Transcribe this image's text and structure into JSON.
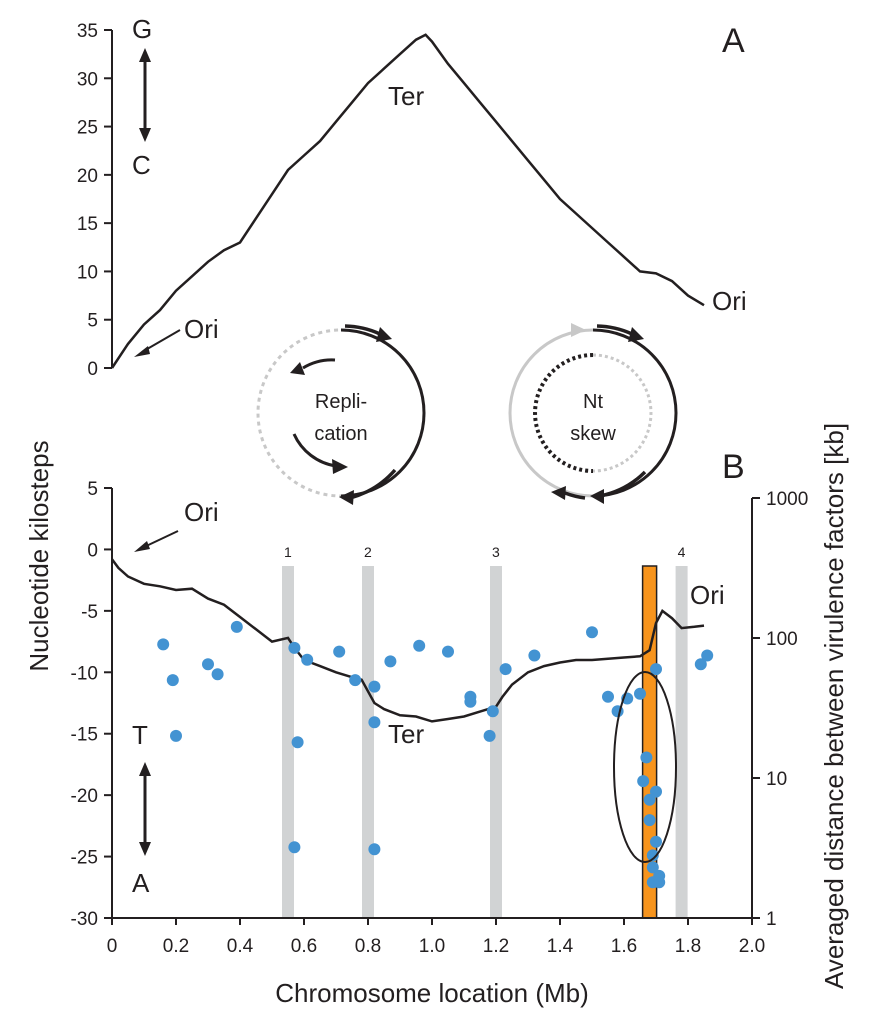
{
  "chart_data": [
    {
      "panel": "A",
      "type": "line",
      "panel_label": "A",
      "xlabel": "",
      "ylabel": "Nucleotide kilosteps",
      "xlim": [
        0,
        2.0
      ],
      "ylim": [
        0,
        35
      ],
      "yticks": [
        "0",
        "5",
        "10",
        "15",
        "20",
        "25",
        "30",
        "35"
      ],
      "direction_top": "G",
      "direction_bottom": "C",
      "annotations": {
        "ori_left": "Ori",
        "ter": "Ter",
        "ori_right": "Ori"
      },
      "series": [
        {
          "x": [
            0,
            0.05,
            0.1,
            0.15,
            0.2,
            0.25,
            0.3,
            0.35,
            0.4,
            0.45,
            0.5,
            0.55,
            0.6,
            0.65,
            0.7,
            0.75,
            0.8,
            0.85,
            0.9,
            0.95,
            0.98,
            1.0,
            1.05,
            1.1,
            1.15,
            1.2,
            1.25,
            1.3,
            1.35,
            1.4,
            1.45,
            1.5,
            1.55,
            1.6,
            1.65,
            1.7,
            1.75,
            1.8,
            1.85
          ],
          "values": [
            0,
            2.5,
            4.5,
            6.0,
            8.0,
            9.5,
            11.0,
            12.2,
            13.0,
            15.5,
            18.0,
            20.5,
            22.0,
            23.5,
            25.5,
            27.5,
            29.5,
            31.0,
            32.5,
            34.0,
            34.5,
            33.8,
            31.5,
            29.5,
            27.5,
            25.5,
            23.5,
            21.5,
            19.5,
            17.5,
            16.0,
            14.5,
            13.0,
            11.5,
            10.0,
            9.8,
            9.0,
            7.5,
            6.5
          ]
        }
      ]
    },
    {
      "panel": "B",
      "type": "line",
      "panel_label": "B",
      "xlabel": "Chromosome location (Mb)",
      "ylabel_right": "Averaged distance between virulence factors [kb]",
      "xlim": [
        0,
        2.0
      ],
      "xticks": [
        "0",
        "0.2",
        "0.4",
        "0.6",
        "0.8",
        "1.0",
        "1.2",
        "1.4",
        "1.6",
        "1.8",
        "2.0"
      ],
      "ylim": [
        -30,
        5
      ],
      "yticks": [
        "5",
        "0",
        "-5",
        "-10",
        "-15",
        "-20",
        "-25",
        "-30"
      ],
      "y2_scale": "log",
      "y2lim": [
        1,
        1000
      ],
      "y2ticks": [
        "1",
        "10",
        "100",
        "1000"
      ],
      "direction_top": "T",
      "direction_bottom": "A",
      "annotations": {
        "ori_left": "Ori",
        "ter": "Ter",
        "ori_right": "Ori"
      },
      "bands": [
        {
          "label": "1",
          "x": 0.55
        },
        {
          "label": "2",
          "x": 0.8
        },
        {
          "label": "3",
          "x": 1.2
        },
        {
          "label": "4",
          "x": 1.78
        }
      ],
      "highlight_x": 1.68,
      "highlight_color": "#f7941d",
      "series": [
        {
          "x": [
            0,
            0.02,
            0.05,
            0.1,
            0.15,
            0.2,
            0.25,
            0.3,
            0.35,
            0.4,
            0.45,
            0.5,
            0.55,
            0.57,
            0.6,
            0.65,
            0.7,
            0.75,
            0.78,
            0.82,
            0.85,
            0.9,
            0.95,
            1.0,
            1.05,
            1.1,
            1.15,
            1.2,
            1.22,
            1.25,
            1.3,
            1.35,
            1.4,
            1.45,
            1.5,
            1.55,
            1.6,
            1.65,
            1.68,
            1.7,
            1.72,
            1.75,
            1.78,
            1.82,
            1.85
          ],
          "values": [
            -0.8,
            -1.5,
            -2.2,
            -2.8,
            -3.0,
            -3.3,
            -3.2,
            -4.0,
            -4.5,
            -5.5,
            -6.5,
            -7.5,
            -7.2,
            -8.0,
            -9.0,
            -9.5,
            -10.0,
            -10.4,
            -10.6,
            -12.5,
            -13.0,
            -13.5,
            -13.6,
            -14.0,
            -13.8,
            -13.6,
            -13.2,
            -12.8,
            -12.0,
            -11.0,
            -10.0,
            -9.5,
            -9.2,
            -9.0,
            -9.0,
            -8.9,
            -8.8,
            -8.7,
            -8.2,
            -6.0,
            -5.0,
            -5.6,
            -6.4,
            -6.3,
            -6.2
          ]
        }
      ],
      "points_color": "#4393d2",
      "points": {
        "x": [
          0.16,
          0.19,
          0.2,
          0.3,
          0.33,
          0.39,
          0.57,
          0.58,
          0.57,
          0.61,
          0.71,
          0.76,
          0.82,
          0.82,
          0.82,
          0.87,
          0.96,
          1.05,
          1.12,
          1.12,
          1.18,
          1.19,
          1.23,
          1.32,
          1.5,
          1.55,
          1.58,
          1.61,
          1.65,
          1.66,
          1.67,
          1.68,
          1.68,
          1.69,
          1.69,
          1.69,
          1.7,
          1.7,
          1.7,
          1.71,
          1.71,
          1.84,
          1.86
        ],
        "values": [
          90,
          50,
          20,
          65,
          55,
          120,
          85,
          18,
          3.2,
          70,
          80,
          50,
          45,
          25,
          3.1,
          68,
          88,
          80,
          38,
          35,
          20,
          30,
          60,
          75,
          110,
          38,
          30,
          37,
          40,
          9.5,
          14,
          7,
          5,
          2.8,
          2.3,
          1.8,
          3.5,
          8.0,
          60,
          1.8,
          2.0,
          65,
          75
        ]
      }
    }
  ],
  "diagrams": {
    "left_label_line1": "Repli-",
    "left_label_line2": "cation",
    "right_label_line1": "Nt",
    "right_label_line2": "skew"
  }
}
